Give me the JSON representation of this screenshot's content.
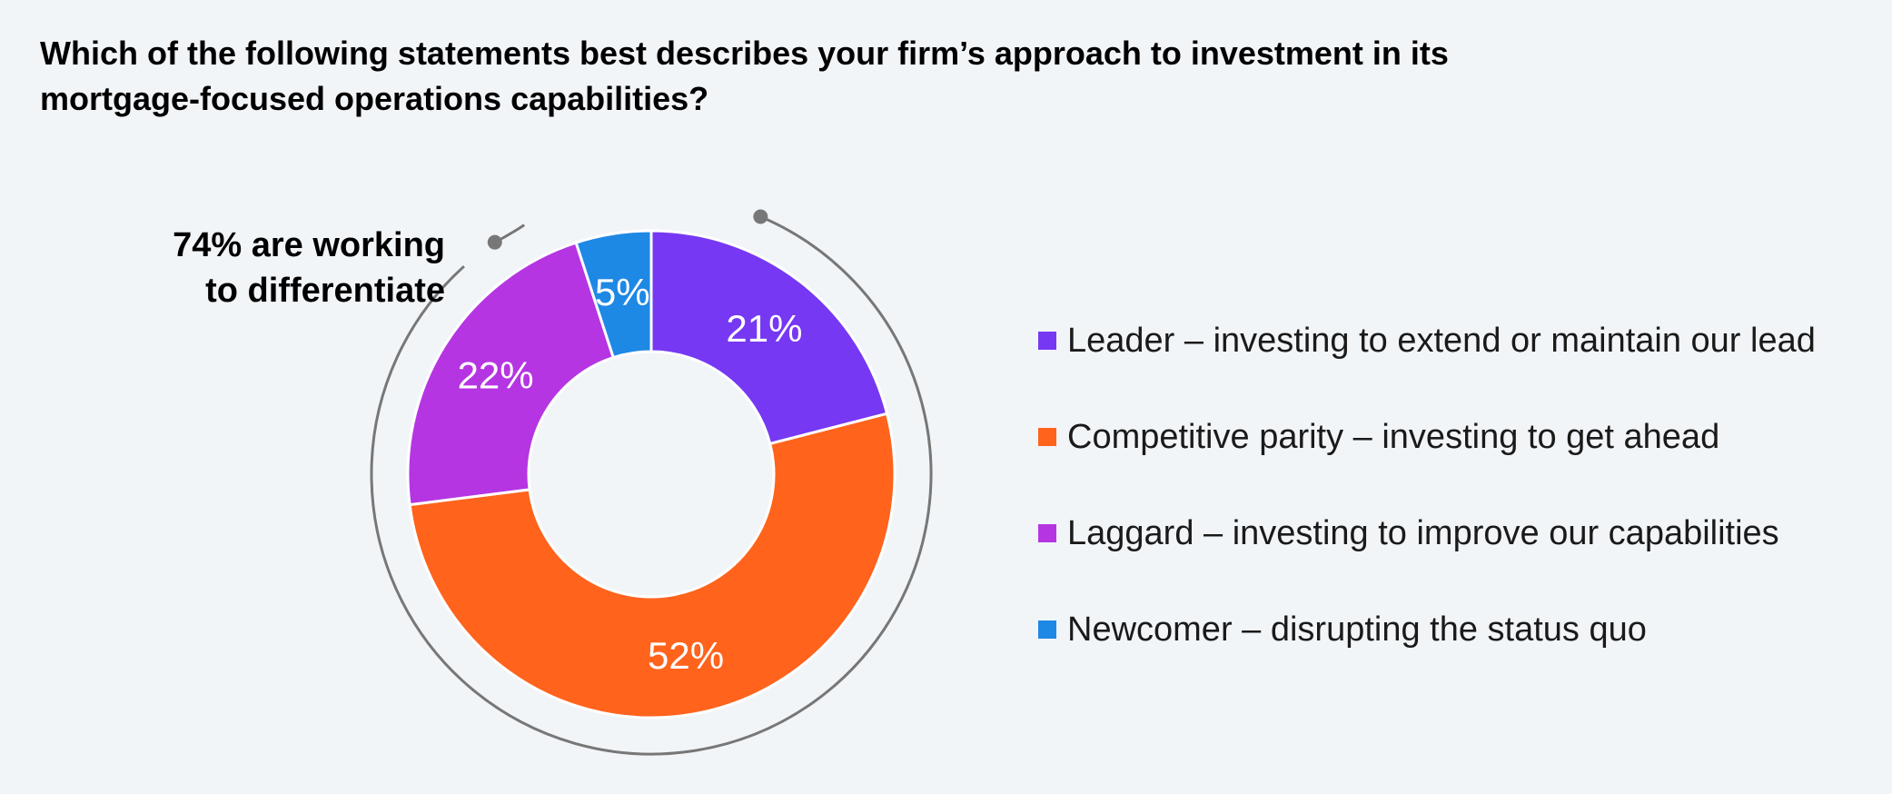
{
  "title": {
    "line1": "Which of the following statements best describes your firm’s approach to investment in its",
    "line2": "mortgage-focused operations capabilities?"
  },
  "callout": {
    "line1": "74% are working",
    "line2": "to differentiate"
  },
  "chart_data": {
    "type": "pie",
    "variant": "donut",
    "start_angle_deg": 0,
    "direction": "clockwise",
    "slices": [
      {
        "name": "Leader – investing to extend or maintain our lead",
        "value": 21,
        "label": "21%",
        "color": "#7638f2"
      },
      {
        "name": "Competitive parity – investing to get ahead",
        "value": 52,
        "label": "52%",
        "color": "#ff631c"
      },
      {
        "name": "Laggard – investing to improve our capabilities",
        "value": 22,
        "label": "22%",
        "color": "#b535e2"
      },
      {
        "name": "Newcomer – disrupting the status quo",
        "value": 5,
        "label": "5%",
        "color": "#1e88e5"
      }
    ],
    "bracket": {
      "from_slice": 0,
      "to_slice": 2,
      "value": 74,
      "color": "#777777"
    },
    "legend_position": "right"
  }
}
